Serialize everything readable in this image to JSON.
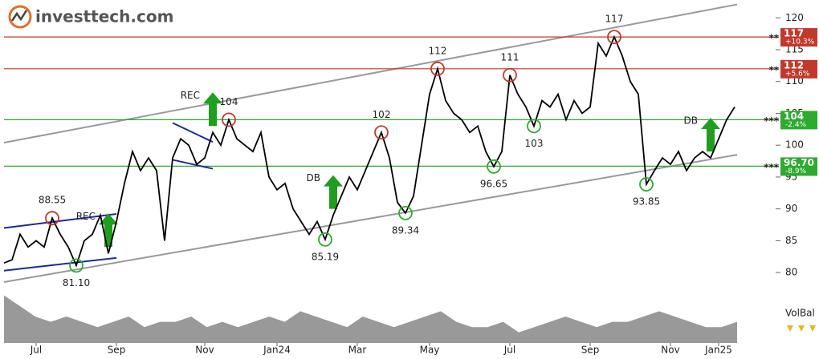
{
  "logo": "investtech.com",
  "chart_data": {
    "type": "line",
    "categories": [
      null,
      null,
      null,
      null,
      "Jul",
      null,
      null,
      null,
      null,
      null,
      null,
      null,
      null,
      null,
      "Sep",
      null,
      null,
      null,
      null,
      null,
      null,
      null,
      null,
      null,
      null,
      "Nov",
      null,
      null,
      null,
      null,
      null,
      null,
      null,
      null,
      "Jan24",
      null,
      null,
      null,
      null,
      null,
      null,
      null,
      null,
      null,
      "Mar",
      null,
      null,
      null,
      null,
      null,
      null,
      null,
      null,
      "May",
      null,
      null,
      null,
      null,
      null,
      null,
      null,
      null,
      null,
      "Jul",
      null,
      null,
      null,
      null,
      null,
      null,
      null,
      null,
      null,
      "Sep",
      null,
      null,
      null,
      null,
      null,
      null,
      null,
      null,
      null,
      "Nov",
      null,
      null,
      null,
      null,
      null,
      "Jan25",
      null,
      null
    ],
    "series": [
      {
        "color": "#000000",
        "values": [
          81.5,
          82,
          86,
          84,
          85,
          84,
          88.55,
          86,
          84,
          81.1,
          85,
          86,
          89,
          83,
          88,
          94,
          99,
          96,
          98,
          96,
          85,
          98,
          101,
          100,
          97,
          98,
          102,
          100,
          104,
          101,
          100,
          99,
          102,
          95,
          93,
          94,
          90,
          88,
          86,
          88,
          85.19,
          89,
          92,
          95,
          93,
          96,
          99,
          102,
          98,
          91,
          89.34,
          92,
          100,
          108,
          112,
          107,
          105,
          104,
          102,
          103,
          99,
          96.65,
          99,
          111,
          108,
          106,
          103,
          107,
          106,
          108,
          104,
          107,
          105,
          106,
          116,
          114,
          117,
          114,
          110,
          108,
          93.85,
          96,
          98,
          97,
          99,
          96,
          98,
          99,
          98,
          101,
          104,
          106
        ]
      }
    ],
    "ylim": [
      78,
      122.8
    ],
    "yticks": [
      80,
      85,
      90,
      95,
      100,
      105,
      110,
      115,
      120
    ],
    "levels": [
      {
        "value": 117,
        "label": "117",
        "change": "+10.3%",
        "stars": "**",
        "color": "#c0392b"
      },
      {
        "value": 112,
        "label": "112",
        "change": "+5.6%",
        "stars": "**",
        "color": "#c0392b"
      },
      {
        "value": 104,
        "label": "104",
        "change": "-2.4%",
        "stars": "***",
        "color": "#2eaa2e"
      },
      {
        "value": 96.7,
        "label": "96.70",
        "change": "-8.9%",
        "stars": "***",
        "color": "#2eaa2e"
      }
    ],
    "channel": [
      {
        "start": 100.4,
        "end": 122.1,
        "color": "#999999"
      },
      {
        "start": 78.5,
        "end": 98.5,
        "color": "#999999"
      }
    ],
    "trend_lines": [
      {
        "start_index": 0,
        "end_index": 14,
        "start": 87,
        "end": 89.2,
        "color": "#1a2a9a"
      },
      {
        "start_index": 0,
        "end_index": 14,
        "start": 80.3,
        "end": 82.3,
        "color": "#1a2a9a"
      },
      {
        "start_index": 21,
        "end_index": 26,
        "start": 103.5,
        "end": 100.5,
        "color": "#1a2a9a"
      },
      {
        "start_index": 21,
        "end_index": 26,
        "start": 97.7,
        "end": 96.3,
        "color": "#1a2a9a"
      }
    ],
    "annotations": [
      {
        "index": 6,
        "label": "88.55",
        "color": "#c0392b",
        "position": "above"
      },
      {
        "index": 9,
        "label": "81.10",
        "color": "#2eaa2e",
        "position": "below"
      },
      {
        "index": 28,
        "label": "104",
        "color": "#c0392b",
        "position": "above"
      },
      {
        "index": 40,
        "label": "85.19",
        "color": "#2eaa2e",
        "position": "below"
      },
      {
        "index": 47,
        "label": "102",
        "color": "#c0392b",
        "position": "above"
      },
      {
        "index": 50,
        "label": "89.34",
        "color": "#2eaa2e",
        "position": "below"
      },
      {
        "index": 54,
        "label": "112",
        "color": "#c0392b",
        "position": "above"
      },
      {
        "index": 61,
        "label": "96.65",
        "color": "#2eaa2e",
        "position": "below"
      },
      {
        "index": 63,
        "label": "111",
        "color": "#c0392b",
        "position": "above"
      },
      {
        "index": 66,
        "label": "103",
        "color": "#2eaa2e",
        "position": "below"
      },
      {
        "index": 76,
        "label": "117",
        "color": "#c0392b",
        "position": "above"
      },
      {
        "index": 80,
        "label": "93.85",
        "color": "#2eaa2e",
        "position": "below"
      }
    ],
    "signals": [
      {
        "index": 13,
        "label": "REC"
      },
      {
        "index": 26,
        "label": "REC"
      },
      {
        "index": 41,
        "label": "DB"
      },
      {
        "index": 88,
        "label": "DB"
      }
    ],
    "volume_balance": {
      "label": "VolBal",
      "vlim": [
        0,
        10
      ],
      "color": "#999999",
      "values": [
        9,
        7,
        5,
        4,
        5,
        4,
        3,
        4,
        5,
        3,
        4,
        4,
        5,
        3,
        4,
        3,
        4,
        5,
        4,
        6,
        5,
        4,
        3,
        5,
        4,
        3,
        4,
        5,
        6,
        4,
        3,
        3,
        4,
        2,
        3,
        4,
        5,
        4,
        3,
        4,
        4,
        5,
        6,
        5,
        4,
        3,
        3,
        4
      ]
    }
  }
}
